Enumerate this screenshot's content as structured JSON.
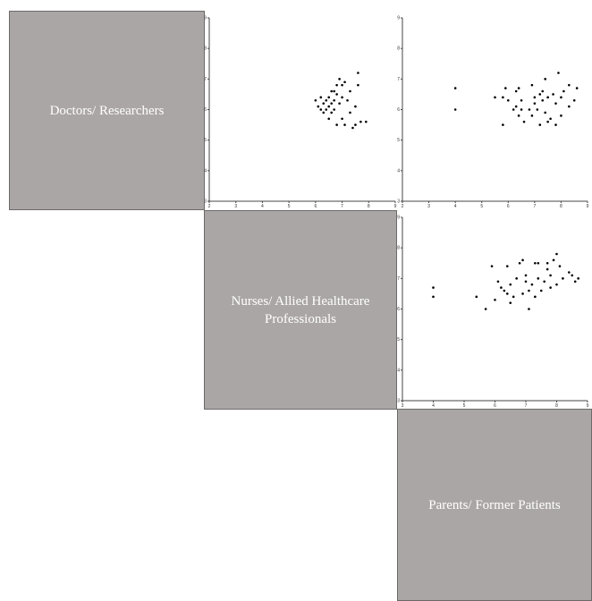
{
  "groups": {
    "g0": "Doctors/ Researchers",
    "g1": "Nurses/ Allied Healthcare Professionals",
    "g2": "Parents/ Former Patients"
  },
  "chart_data": {
    "type": "scatter",
    "title": "",
    "panels": [
      {
        "id": "0-1",
        "x_group": "Nurses/ Allied Healthcare Professionals",
        "y_group": "Doctors/ Researchers",
        "xlim": [
          2,
          9
        ],
        "ylim": [
          3,
          9
        ],
        "xticks": [
          2,
          3,
          4,
          5,
          6,
          7,
          8,
          9
        ],
        "yticks": [
          3,
          4,
          5,
          6,
          7,
          8,
          9
        ],
        "points": [
          [
            6.0,
            6.3
          ],
          [
            6.1,
            6.1
          ],
          [
            6.2,
            6.4
          ],
          [
            6.2,
            6.0
          ],
          [
            6.3,
            6.2
          ],
          [
            6.3,
            5.9
          ],
          [
            6.4,
            6.3
          ],
          [
            6.4,
            6.0
          ],
          [
            6.5,
            6.4
          ],
          [
            6.5,
            6.1
          ],
          [
            6.5,
            5.7
          ],
          [
            6.6,
            6.6
          ],
          [
            6.6,
            6.2
          ],
          [
            6.6,
            5.9
          ],
          [
            6.7,
            6.6
          ],
          [
            6.7,
            6.3
          ],
          [
            6.7,
            6.0
          ],
          [
            6.8,
            6.8
          ],
          [
            6.8,
            6.5
          ],
          [
            6.8,
            5.5
          ],
          [
            6.9,
            7.0
          ],
          [
            6.9,
            6.2
          ],
          [
            7.0,
            6.8
          ],
          [
            7.0,
            6.4
          ],
          [
            7.0,
            5.7
          ],
          [
            7.1,
            6.9
          ],
          [
            7.1,
            5.5
          ],
          [
            7.2,
            6.3
          ],
          [
            7.3,
            6.6
          ],
          [
            7.3,
            5.9
          ],
          [
            7.4,
            5.4
          ],
          [
            7.5,
            5.5
          ],
          [
            7.5,
            6.1
          ],
          [
            7.6,
            6.8
          ],
          [
            7.6,
            7.2
          ],
          [
            7.7,
            5.6
          ],
          [
            7.9,
            5.6
          ]
        ]
      },
      {
        "id": "0-2",
        "x_group": "Parents/ Former Patients",
        "y_group": "Doctors/ Researchers",
        "xlim": [
          2,
          9
        ],
        "ylim": [
          3,
          9
        ],
        "xticks": [
          2,
          3,
          4,
          5,
          6,
          7,
          8,
          9
        ],
        "yticks": [
          3,
          4,
          5,
          6,
          7,
          8,
          9
        ],
        "points": [
          [
            4.0,
            6.7
          ],
          [
            4.0,
            6.0
          ],
          [
            5.5,
            6.4
          ],
          [
            5.8,
            6.4
          ],
          [
            5.8,
            5.5
          ],
          [
            5.9,
            6.7
          ],
          [
            6.0,
            6.3
          ],
          [
            6.2,
            6.0
          ],
          [
            6.3,
            6.6
          ],
          [
            6.3,
            6.1
          ],
          [
            6.4,
            6.7
          ],
          [
            6.4,
            5.8
          ],
          [
            6.5,
            6.3
          ],
          [
            6.5,
            6.0
          ],
          [
            6.6,
            5.6
          ],
          [
            6.8,
            6.0
          ],
          [
            6.9,
            6.8
          ],
          [
            6.9,
            5.8
          ],
          [
            7.0,
            6.4
          ],
          [
            7.0,
            6.2
          ],
          [
            7.1,
            6.0
          ],
          [
            7.2,
            5.5
          ],
          [
            7.2,
            6.5
          ],
          [
            7.3,
            6.6
          ],
          [
            7.3,
            6.3
          ],
          [
            7.4,
            7.0
          ],
          [
            7.4,
            5.9
          ],
          [
            7.5,
            6.4
          ],
          [
            7.5,
            5.6
          ],
          [
            7.6,
            5.7
          ],
          [
            7.7,
            6.5
          ],
          [
            7.8,
            6.2
          ],
          [
            7.8,
            5.5
          ],
          [
            7.9,
            7.2
          ],
          [
            8.0,
            6.4
          ],
          [
            8.0,
            5.8
          ],
          [
            8.1,
            6.6
          ],
          [
            8.3,
            6.1
          ],
          [
            8.3,
            6.8
          ],
          [
            8.5,
            6.3
          ],
          [
            8.6,
            6.7
          ]
        ]
      },
      {
        "id": "1-2",
        "x_group": "Parents/ Former Patients",
        "y_group": "Nurses/ Allied Healthcare Professionals",
        "xlim": [
          3,
          9
        ],
        "ylim": [
          3,
          9
        ],
        "xticks": [
          3,
          4,
          5,
          6,
          7,
          8,
          9
        ],
        "yticks": [
          3,
          4,
          5,
          6,
          7,
          8,
          9
        ],
        "points": [
          [
            4.0,
            6.7
          ],
          [
            4.0,
            6.4
          ],
          [
            5.4,
            6.4
          ],
          [
            5.7,
            6.0
          ],
          [
            5.9,
            7.4
          ],
          [
            6.0,
            6.3
          ],
          [
            6.1,
            6.9
          ],
          [
            6.2,
            6.7
          ],
          [
            6.3,
            6.6
          ],
          [
            6.4,
            7.4
          ],
          [
            6.4,
            6.5
          ],
          [
            6.5,
            6.8
          ],
          [
            6.5,
            6.2
          ],
          [
            6.6,
            6.4
          ],
          [
            6.7,
            7.0
          ],
          [
            6.8,
            7.5
          ],
          [
            6.9,
            7.6
          ],
          [
            6.9,
            6.5
          ],
          [
            7.0,
            7.1
          ],
          [
            7.0,
            6.9
          ],
          [
            7.1,
            6.0
          ],
          [
            7.1,
            6.6
          ],
          [
            7.2,
            6.8
          ],
          [
            7.3,
            7.5
          ],
          [
            7.3,
            6.4
          ],
          [
            7.4,
            7.0
          ],
          [
            7.4,
            7.5
          ],
          [
            7.5,
            6.6
          ],
          [
            7.6,
            6.9
          ],
          [
            7.7,
            7.3
          ],
          [
            7.7,
            7.5
          ],
          [
            7.8,
            6.7
          ],
          [
            7.8,
            7.1
          ],
          [
            7.9,
            7.6
          ],
          [
            8.0,
            7.8
          ],
          [
            8.0,
            6.8
          ],
          [
            8.1,
            7.4
          ],
          [
            8.2,
            7.0
          ],
          [
            8.4,
            7.2
          ],
          [
            8.5,
            7.1
          ],
          [
            8.6,
            6.9
          ],
          [
            8.7,
            7.0
          ]
        ]
      }
    ]
  }
}
